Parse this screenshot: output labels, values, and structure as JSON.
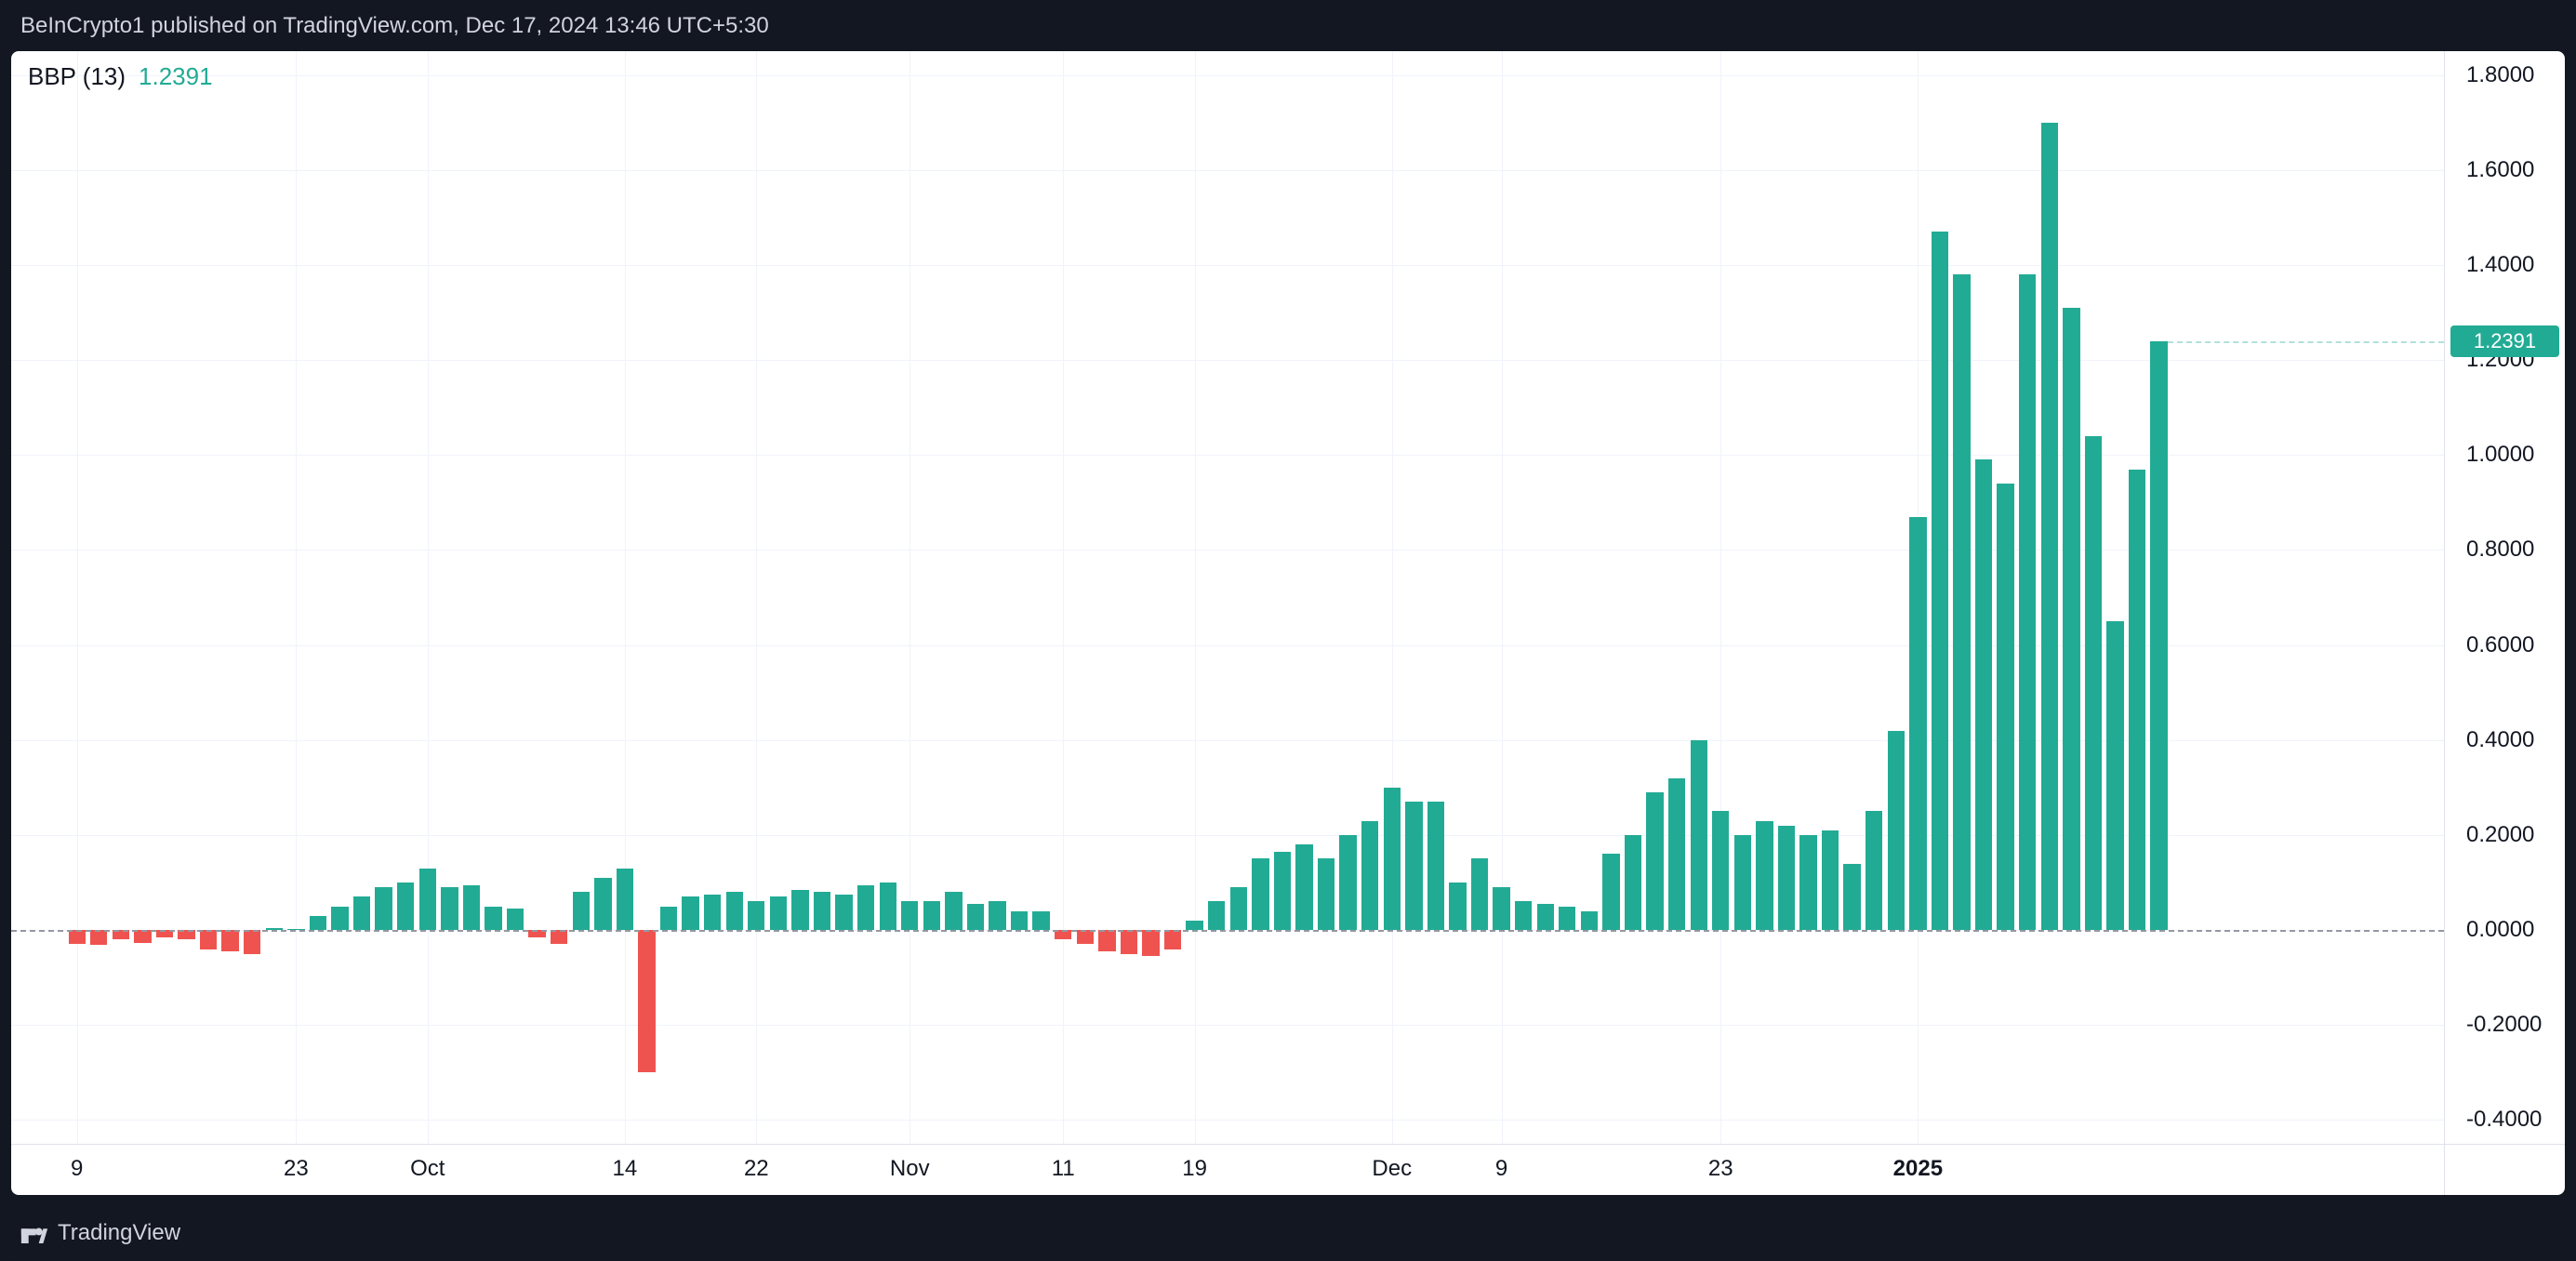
{
  "header": {
    "attribution": "BeInCrypto1 published on TradingView.com, Dec 17, 2024 13:46 UTC+5:30"
  },
  "legend": {
    "indicator": "BBP (13)",
    "value": "1.2391"
  },
  "footer": {
    "brand": "TradingView"
  },
  "chart": {
    "type": "bar",
    "background_color": "#ffffff",
    "outer_background": "#131722",
    "grid_color": "#f0f3fa",
    "axis_border_color": "#e0e3eb",
    "zero_line_color": "#9598a1",
    "positive_color": "#22ab94",
    "negative_color": "#ef5350",
    "text_color": "#131722",
    "header_text_color": "#d1d4dc",
    "value_color": "#22ab94",
    "label_fontsize": 24,
    "legend_fontsize": 26,
    "bar_width_ratio": 0.78,
    "y": {
      "min": -0.45,
      "max": 1.85,
      "ticks": [
        {
          "v": 1.8,
          "label": "1.8000"
        },
        {
          "v": 1.6,
          "label": "1.6000"
        },
        {
          "v": 1.4,
          "label": "1.4000"
        },
        {
          "v": 1.2,
          "label": "1.2000"
        },
        {
          "v": 1.0,
          "label": "1.0000"
        },
        {
          "v": 0.8,
          "label": "0.8000"
        },
        {
          "v": 0.6,
          "label": "0.6000"
        },
        {
          "v": 0.4,
          "label": "0.4000"
        },
        {
          "v": 0.2,
          "label": "0.2000"
        },
        {
          "v": 0.0,
          "label": "0.0000"
        },
        {
          "v": -0.2,
          "label": "-0.2000"
        },
        {
          "v": -0.4,
          "label": "-0.4000"
        }
      ],
      "price_line": {
        "v": 1.2391,
        "label": "1.2391"
      }
    },
    "x": {
      "start_index": -3,
      "end_index": 108,
      "ticks": [
        {
          "i": 0,
          "label": "9"
        },
        {
          "i": 10,
          "label": "23"
        },
        {
          "i": 16,
          "label": "Oct"
        },
        {
          "i": 25,
          "label": "14"
        },
        {
          "i": 31,
          "label": "22"
        },
        {
          "i": 38,
          "label": "Nov"
        },
        {
          "i": 45,
          "label": "11"
        },
        {
          "i": 51,
          "label": "19"
        },
        {
          "i": 60,
          "label": "Dec"
        },
        {
          "i": 65,
          "label": "9"
        },
        {
          "i": 75,
          "label": "23"
        },
        {
          "i": 84,
          "label": "2025",
          "bold": true
        }
      ]
    },
    "values": [
      -0.03,
      -0.032,
      -0.02,
      -0.028,
      -0.015,
      -0.02,
      -0.04,
      -0.045,
      -0.05,
      0.005,
      0.003,
      0.03,
      0.05,
      0.07,
      0.09,
      0.1,
      0.13,
      0.09,
      0.095,
      0.05,
      0.045,
      -0.015,
      -0.03,
      0.08,
      0.11,
      0.13,
      -0.3,
      0.05,
      0.07,
      0.075,
      0.08,
      0.06,
      0.07,
      0.085,
      0.08,
      0.075,
      0.095,
      0.1,
      0.06,
      0.06,
      0.08,
      0.055,
      0.06,
      0.04,
      0.04,
      -0.02,
      -0.03,
      -0.045,
      -0.05,
      -0.055,
      -0.04,
      0.02,
      0.06,
      0.09,
      0.15,
      0.165,
      0.18,
      0.15,
      0.2,
      0.23,
      0.3,
      0.27,
      0.27,
      0.1,
      0.15,
      0.09,
      0.06,
      0.055,
      0.05,
      0.04,
      0.16,
      0.2,
      0.29,
      0.32,
      0.4,
      0.25,
      0.2,
      0.23,
      0.22,
      0.2,
      0.21,
      0.14,
      0.25,
      0.42,
      0.87,
      1.47,
      1.38,
      0.99,
      0.94,
      1.38,
      1.7,
      1.31,
      1.04,
      0.65,
      0.97,
      1.2391
    ]
  }
}
